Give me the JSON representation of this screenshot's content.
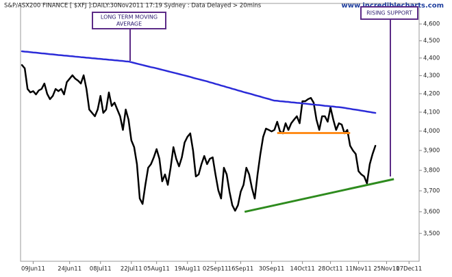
{
  "chart_data": {
    "type": "line",
    "title": "S&P/ASX200 FINANCE [ $XFJ ]:DAILY:30Nov2011 17:19 Sydney : Data Delayed > 20mins",
    "source": "www.incrediblecharts.com",
    "log_scale": true,
    "xlim": [
      -0.5,
      141.6
    ],
    "ylim": [
      3375,
      4725
    ],
    "xticks": [
      {
        "value": 4,
        "label": "09Jun11"
      },
      {
        "value": 17,
        "label": "24Jun11"
      },
      {
        "value": 28,
        "label": "08Jul11"
      },
      {
        "value": 39,
        "label": "22Jul11"
      },
      {
        "value": 48,
        "label": "05Aug11"
      },
      {
        "value": 59,
        "label": "19Aug11"
      },
      {
        "value": 69,
        "label": "02Sep11"
      },
      {
        "value": 78,
        "label": "16Sep11"
      },
      {
        "value": 89,
        "label": "30Sep11"
      },
      {
        "value": 100,
        "label": "14Oct11"
      },
      {
        "value": 110,
        "label": "28Oct11"
      },
      {
        "value": 120,
        "label": "11Nov11"
      },
      {
        "value": 130,
        "label": "25Nov11"
      },
      {
        "value": 138,
        "label": "07Dec11"
      }
    ],
    "yticks": [
      {
        "value": 3500,
        "label": "3,500"
      },
      {
        "value": 3600,
        "label": "3,600"
      },
      {
        "value": 3700,
        "label": "3,700"
      },
      {
        "value": 3800,
        "label": "3,800"
      },
      {
        "value": 3900,
        "label": "3,900"
      },
      {
        "value": 4000,
        "label": "4,000"
      },
      {
        "value": 4100,
        "label": "4,100"
      },
      {
        "value": 4200,
        "label": "4,200"
      },
      {
        "value": 4300,
        "label": "4,300"
      },
      {
        "value": 4400,
        "label": "4,400"
      },
      {
        "value": 4500,
        "label": "4,500"
      },
      {
        "value": 4600,
        "label": "4,600"
      }
    ],
    "series": [
      {
        "color": "#000000",
        "values": [
          4360,
          4341,
          4226,
          4207,
          4214,
          4196,
          4218,
          4226,
          4256,
          4199,
          4170,
          4188,
          4226,
          4214,
          4226,
          4196,
          4264,
          4283,
          4302,
          4283,
          4272,
          4256,
          4302,
          4226,
          4114,
          4096,
          4078,
          4114,
          4188,
          4096,
          4114,
          4207,
          4133,
          4151,
          4114,
          4078,
          4006,
          4114,
          4060,
          3952,
          3917,
          3831,
          3663,
          3637,
          3729,
          3813,
          3831,
          3865,
          3907,
          3858,
          3746,
          3780,
          3729,
          3813,
          3917,
          3858,
          3820,
          3865,
          3941,
          3970,
          3988,
          3900,
          3770,
          3780,
          3831,
          3872,
          3831,
          3858,
          3865,
          3780,
          3703,
          3663,
          3813,
          3780,
          3696,
          3631,
          3605,
          3631,
          3696,
          3729,
          3813,
          3780,
          3713,
          3663,
          3780,
          3882,
          3970,
          4013,
          4006,
          3998,
          4006,
          4049,
          3998,
          3988,
          4041,
          4006,
          4041,
          4060,
          4078,
          4041,
          4159,
          4159,
          4170,
          4177,
          4151,
          4060,
          4006,
          4078,
          4078,
          4049,
          4125,
          4060,
          4006,
          4041,
          4034,
          3988,
          4006,
          3924,
          3900,
          3882,
          3796,
          3780,
          3770,
          3736,
          3831,
          3882,
          3924
        ]
      },
      {
        "color": "#2b2bd8",
        "values": [
          4439,
          4437,
          4436,
          4434,
          4432,
          4431,
          4429,
          4427,
          4426,
          4424,
          4422,
          4421,
          4419,
          4417,
          4416,
          4414,
          4413,
          4411,
          4410,
          4408,
          4407,
          4405,
          4404,
          4402,
          4401,
          4399,
          4398,
          4396,
          4395,
          4393,
          4392,
          4390,
          4389,
          4387,
          4386,
          4384,
          4383,
          4381,
          4380,
          4376,
          4372,
          4368,
          4364,
          4360,
          4356,
          4352,
          4348,
          4345,
          4341,
          4337,
          4333,
          4329,
          4325,
          4321,
          4317,
          4313,
          4309,
          4305,
          4301,
          4297,
          4293,
          4288,
          4284,
          4280,
          4276,
          4272,
          4268,
          4263,
          4259,
          4254,
          4250,
          4245,
          4241,
          4236,
          4232,
          4227,
          4223,
          4218,
          4214,
          4209,
          4205,
          4201,
          4197,
          4192,
          4188,
          4184,
          4179,
          4175,
          4171,
          4166,
          4162,
          4161,
          4159,
          4158,
          4156,
          4155,
          4153,
          4152,
          4150,
          4149,
          4147,
          4146,
          4144,
          4142,
          4141,
          4139,
          4138,
          4136,
          4134,
          4133,
          4131,
          4130,
          4128,
          4127,
          4125,
          4123,
          4120,
          4118,
          4115,
          4113,
          4111,
          4108,
          4106,
          4103,
          4101,
          4098,
          4096
        ]
      }
    ],
    "trend_lines": [
      {
        "color": "#ff8c1a",
        "x": [
          91,
          117
        ],
        "y": [
          3990,
          3990
        ]
      },
      {
        "color": "#2e8b1e",
        "x": [
          79.4,
          132.6
        ],
        "y": [
          3600,
          3757
        ]
      }
    ],
    "annotations": [
      {
        "text": [
          "LONG TERM MOVING",
          "AVERAGE"
        ]
      },
      {
        "text": [
          "RISING SUPPORT"
        ]
      }
    ]
  }
}
